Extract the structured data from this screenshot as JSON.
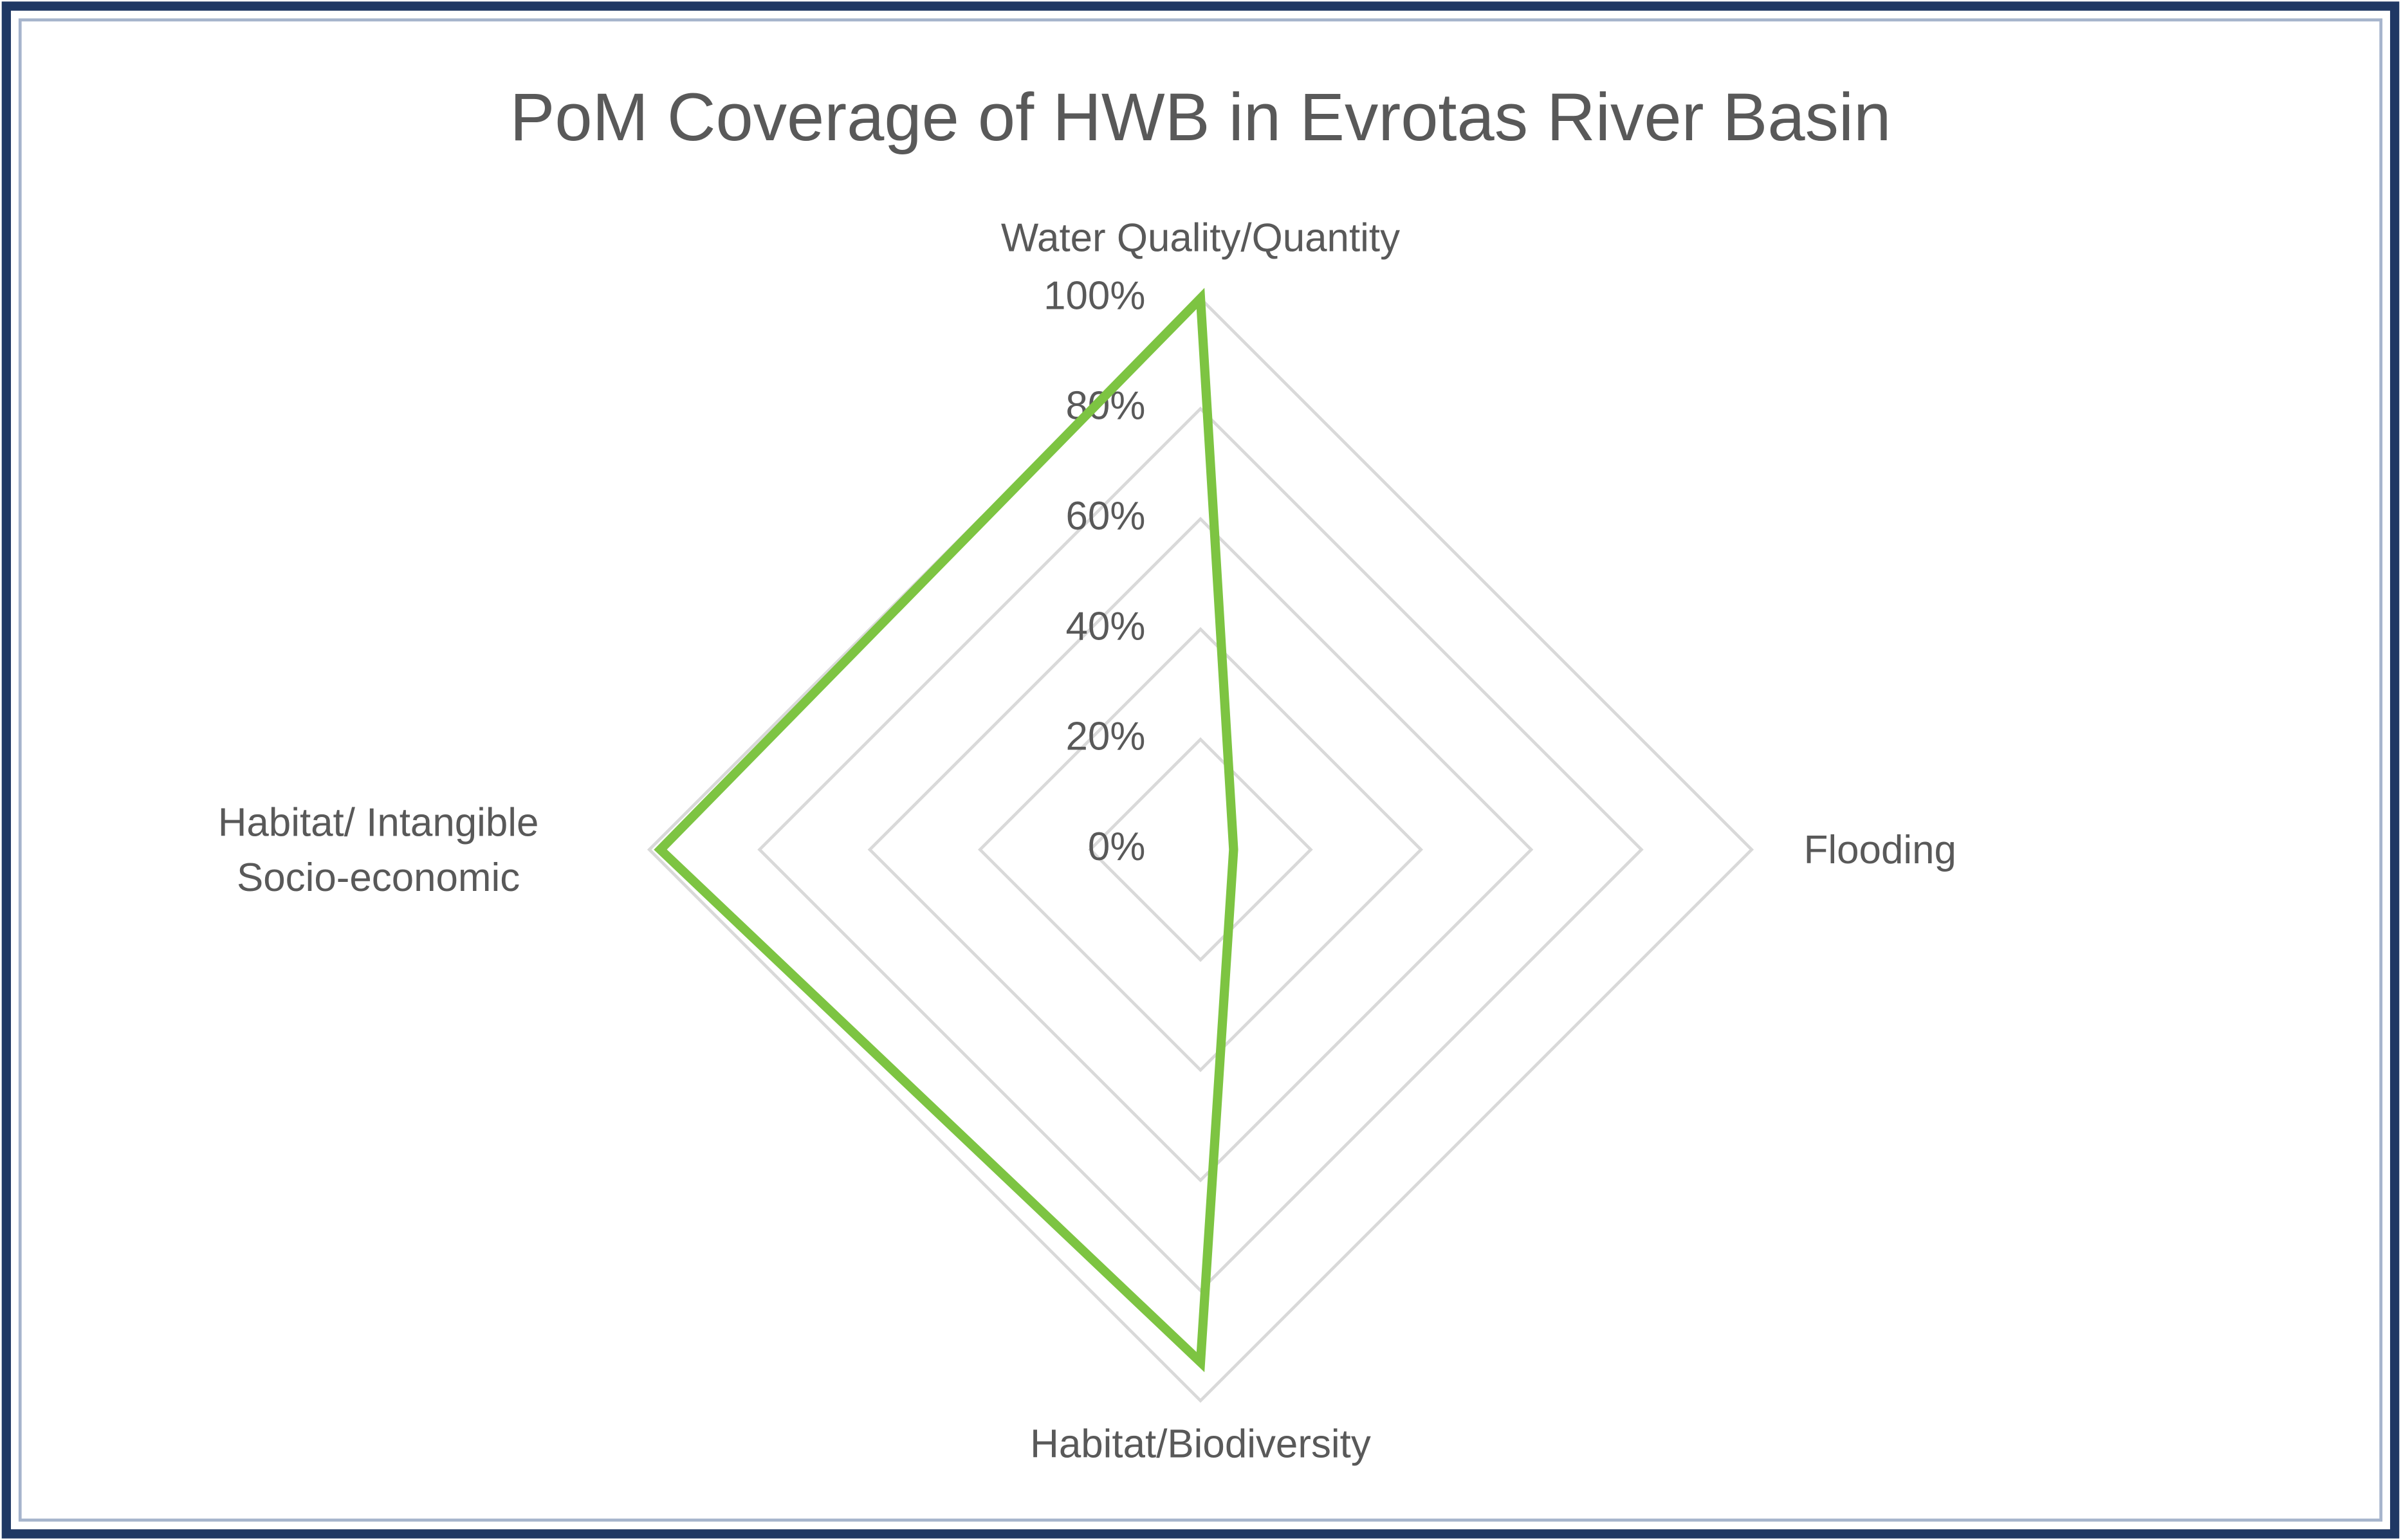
{
  "chart_data": {
    "type": "radar",
    "title": "PoM Coverage of HWB in Evrotas River Basin",
    "categories": [
      "Water Quality/Quantity",
      "Flooding",
      "Habitat/Biodiversity",
      "Habitat/ Intangible Socio-economic"
    ],
    "values": [
      100,
      6,
      93,
      98
    ],
    "color": "#7dc442",
    "ylim": [
      0,
      100
    ],
    "yticks": [
      {
        "value": 0,
        "label": "0%"
      },
      {
        "value": 20,
        "label": "20%"
      },
      {
        "value": 40,
        "label": "40%"
      },
      {
        "value": 60,
        "label": "60%"
      },
      {
        "value": 80,
        "label": "80%"
      },
      {
        "value": 100,
        "label": "100%"
      }
    ],
    "grid": true
  }
}
